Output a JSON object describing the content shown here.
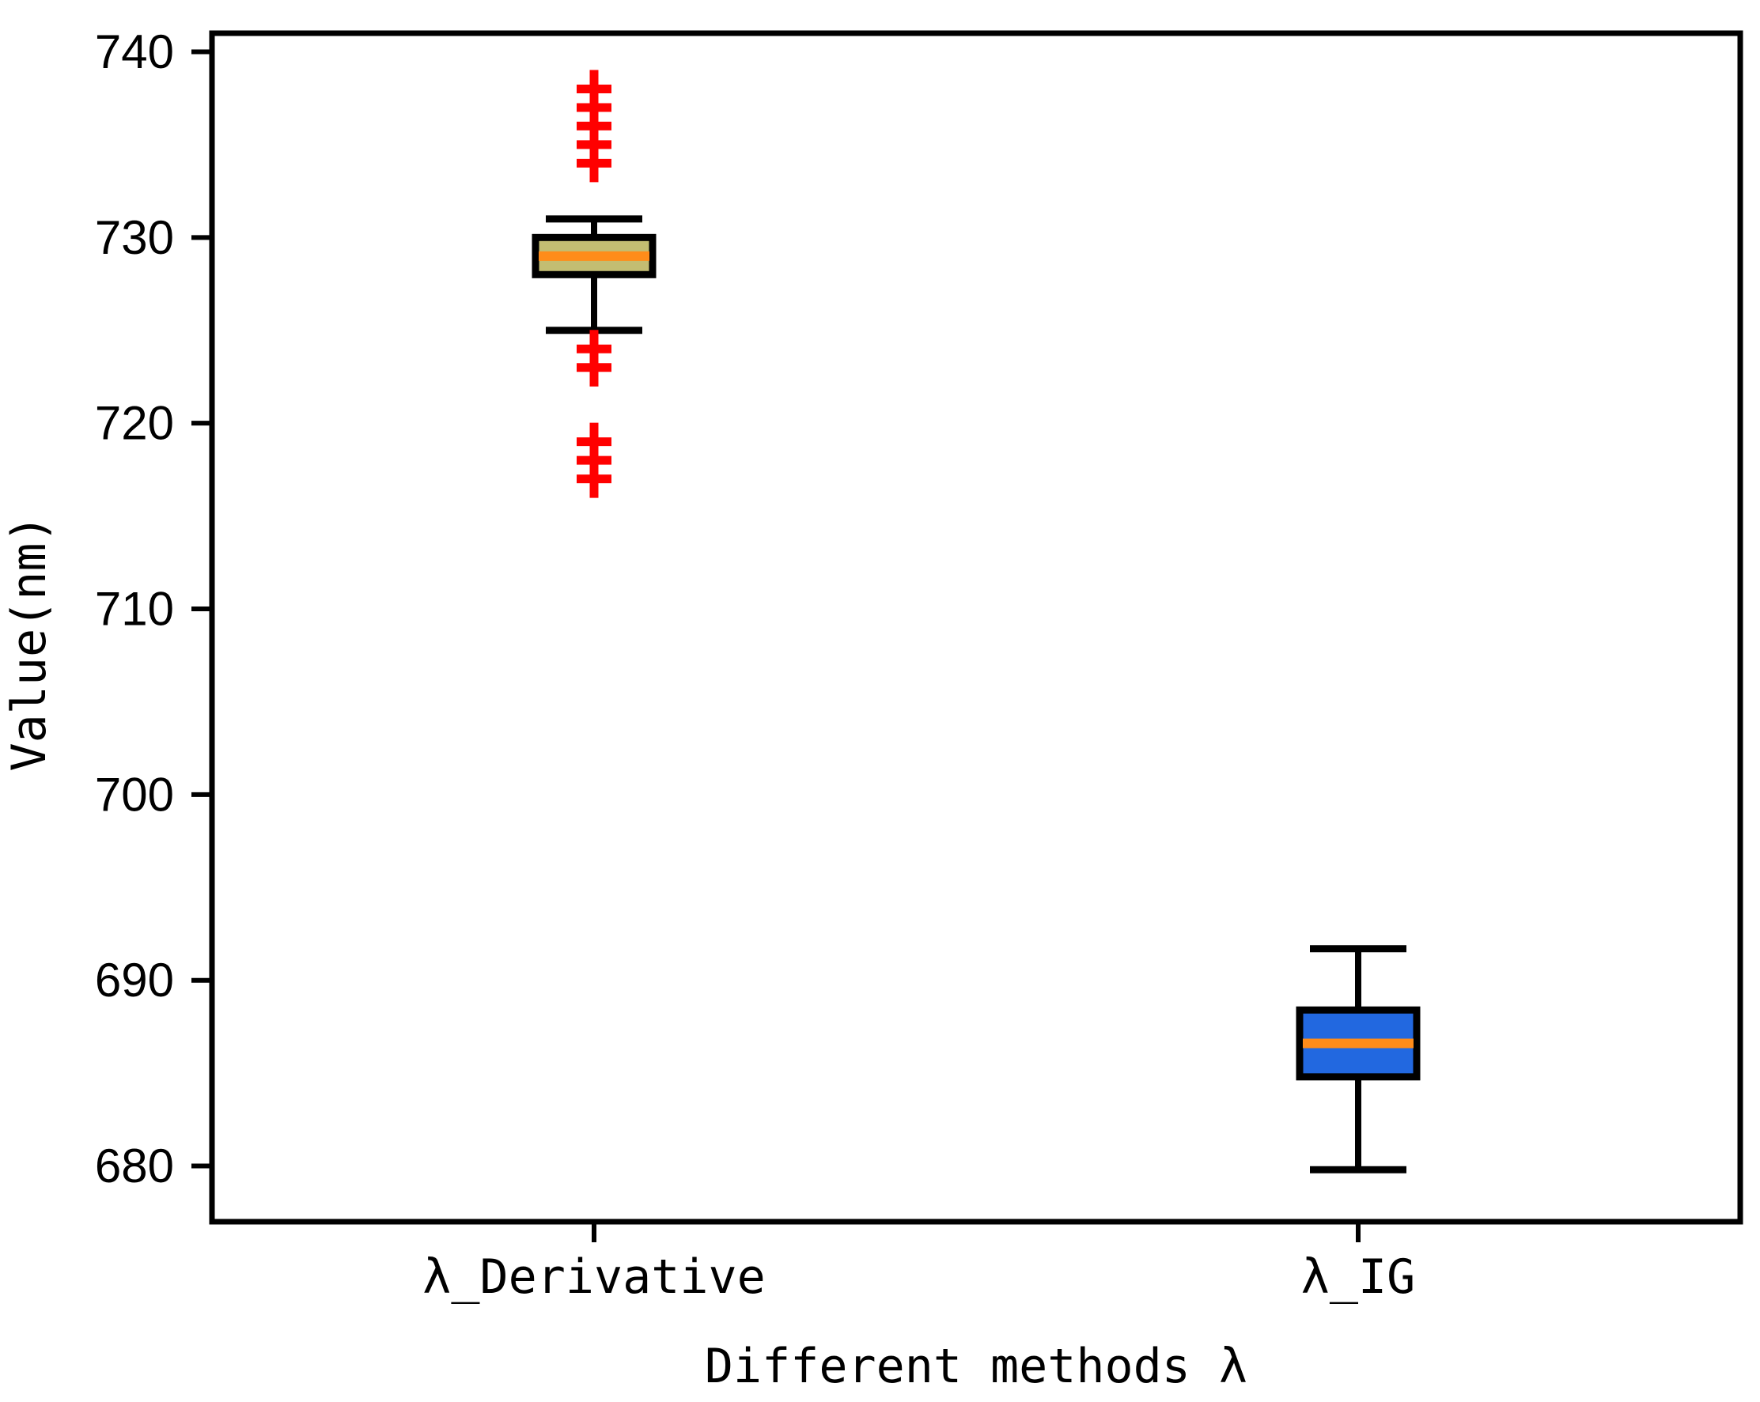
{
  "figure": {
    "background": "#ffffff",
    "axis_color": "#000000"
  },
  "chart_data": {
    "type": "boxplot",
    "title": "",
    "xlabel": "Different methods λ",
    "ylabel": "Value(nm)",
    "ylim": [
      677,
      741
    ],
    "yticks": [
      680,
      690,
      700,
      710,
      720,
      730,
      740
    ],
    "categories": [
      "λ_Derivative",
      "λ_IG"
    ],
    "grid": false,
    "legend": "none",
    "outlier_marker": "plus",
    "outlier_color": "#ff0000",
    "series": [
      {
        "name": "λ_Derivative",
        "box_color": "#c3bd72",
        "median_color": "#ff8c1a",
        "whisker_low": 725,
        "q1": 728,
        "median": 729,
        "q3": 730,
        "whisker_high": 731,
        "outliers": [
          738,
          737,
          736,
          735,
          734,
          724,
          723,
          719,
          718,
          717
        ]
      },
      {
        "name": "λ_IG",
        "box_color": "#2268e0",
        "median_color": "#ff8c1a",
        "whisker_low": 679.8,
        "q1": 684.8,
        "median": 686.6,
        "q3": 688.4,
        "whisker_high": 691.7,
        "outliers": []
      }
    ]
  }
}
